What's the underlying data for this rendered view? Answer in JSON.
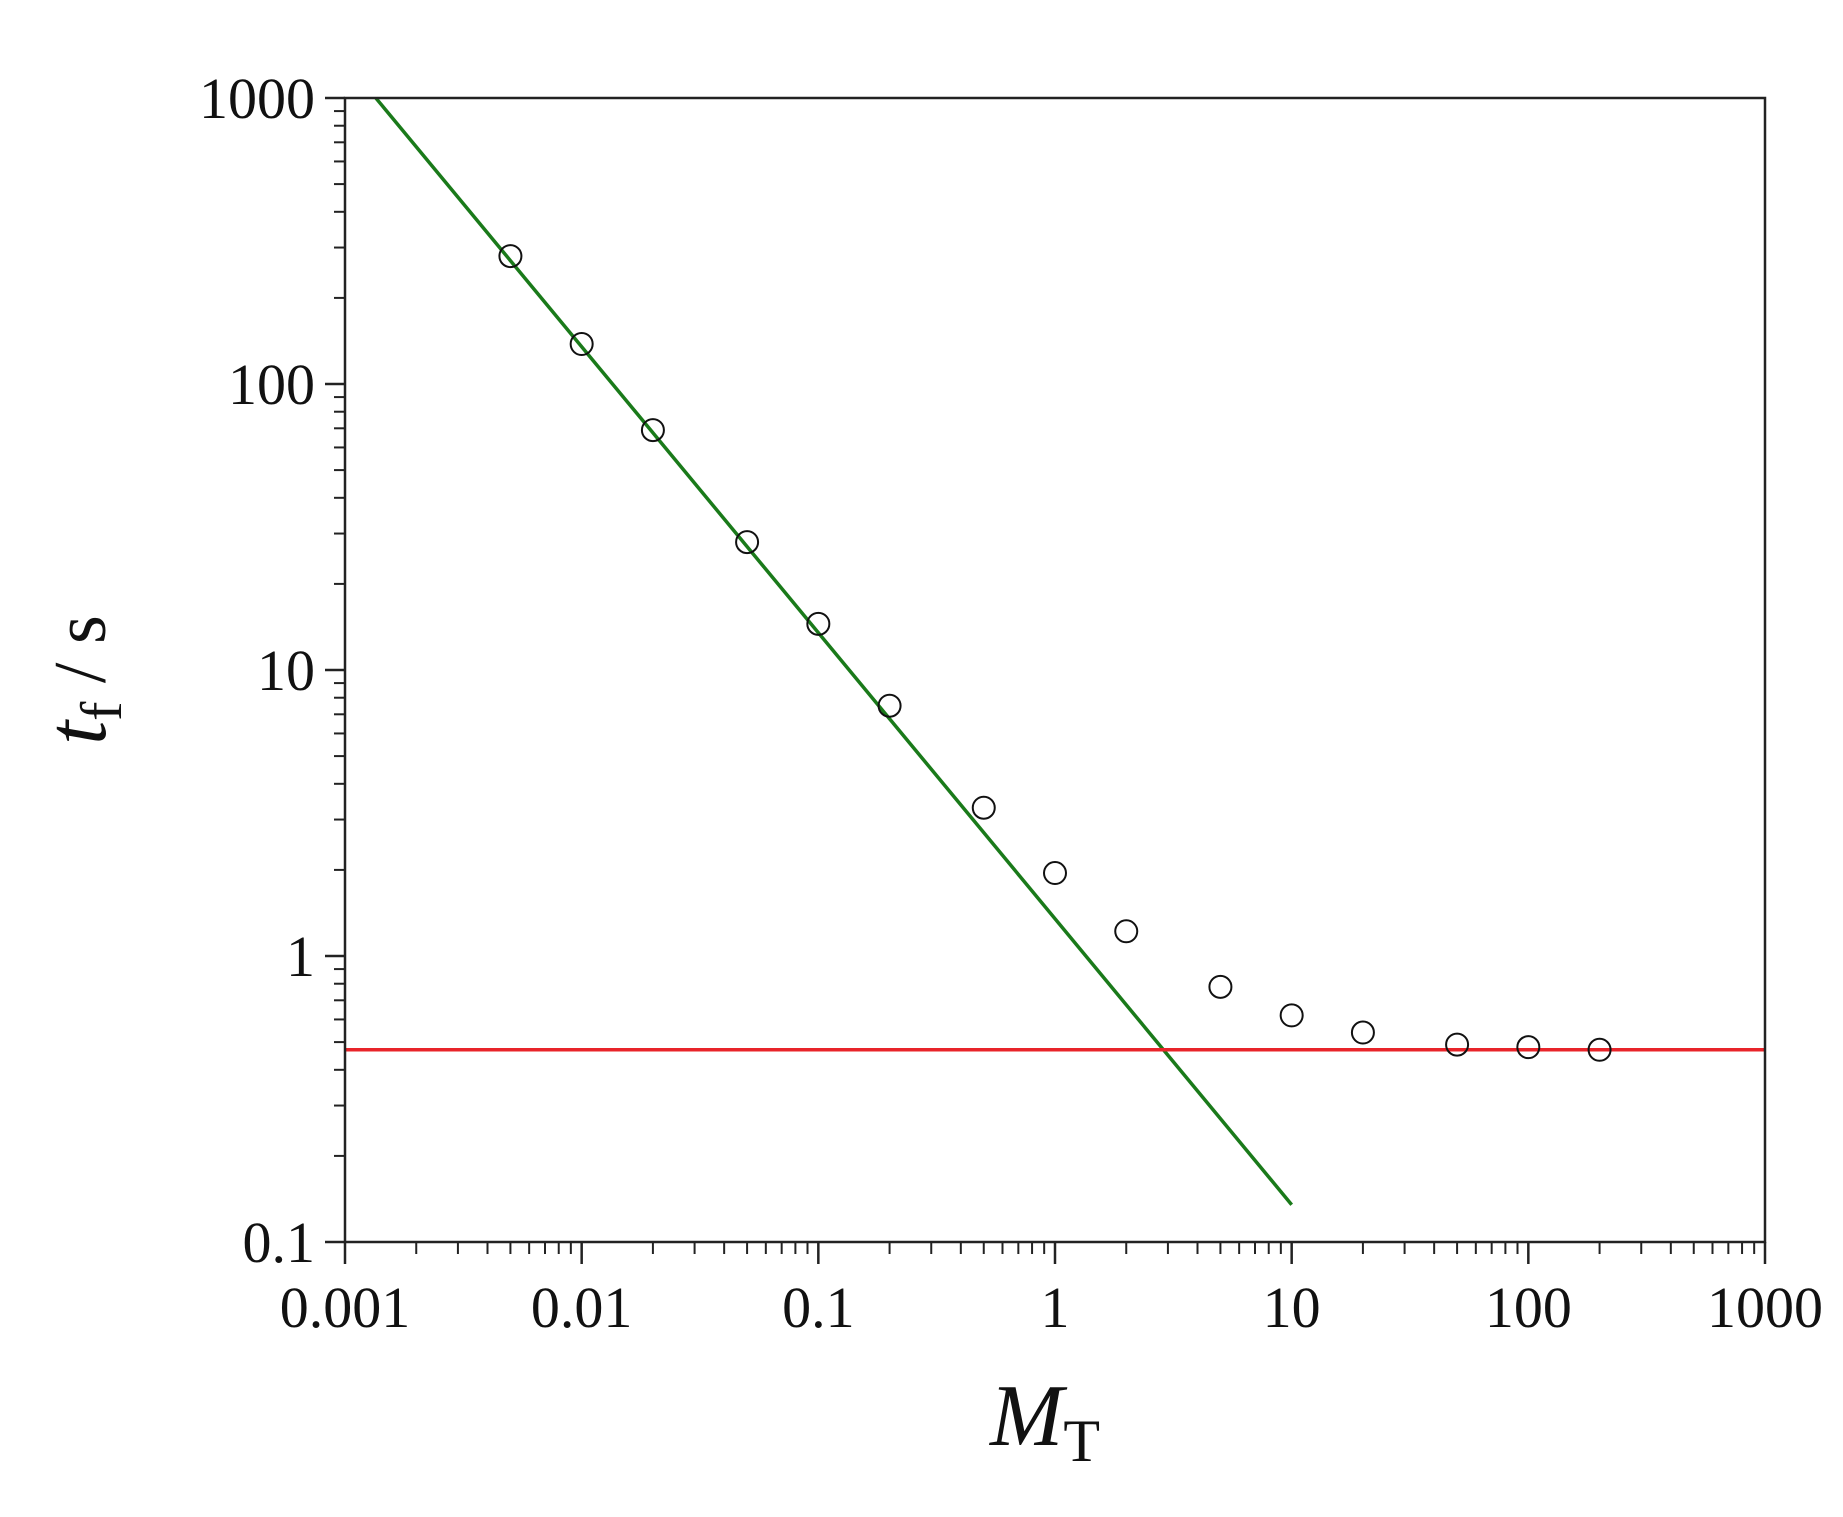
{
  "chart_data": {
    "type": "scatter",
    "x_scale": "log",
    "y_scale": "log",
    "xlim": [
      0.001,
      1000
    ],
    "ylim": [
      0.1,
      1000
    ],
    "xlabel": {
      "main": "M",
      "sub": "T"
    },
    "ylabel": {
      "main": "t",
      "sub": "f",
      "unit": " / s"
    },
    "x_tick_labels": [
      "0.001",
      "0.01",
      "0.1",
      "1",
      "10",
      "100",
      "1000"
    ],
    "y_tick_labels": [
      "0.1",
      "1",
      "10",
      "100",
      "1000"
    ],
    "grid": false,
    "series": [
      {
        "kind": "scatter",
        "marker": "open-circle",
        "color": "#111111",
        "points": [
          {
            "x": 0.005,
            "y": 280
          },
          {
            "x": 0.01,
            "y": 138
          },
          {
            "x": 0.02,
            "y": 69
          },
          {
            "x": 0.05,
            "y": 28
          },
          {
            "x": 0.1,
            "y": 14.5
          },
          {
            "x": 0.2,
            "y": 7.5
          },
          {
            "x": 0.5,
            "y": 3.3
          },
          {
            "x": 1,
            "y": 1.95
          },
          {
            "x": 2,
            "y": 1.22
          },
          {
            "x": 5,
            "y": 0.78
          },
          {
            "x": 10,
            "y": 0.62
          },
          {
            "x": 20,
            "y": 0.54
          },
          {
            "x": 50,
            "y": 0.49
          },
          {
            "x": 100,
            "y": 0.48
          },
          {
            "x": 200,
            "y": 0.47
          }
        ]
      },
      {
        "kind": "line",
        "color": "#1a7a1a",
        "points": [
          {
            "x": 0.00135,
            "y": 1000
          },
          {
            "x": 10,
            "y": 0.135
          }
        ]
      },
      {
        "kind": "line",
        "color": "#e8242a",
        "points": [
          {
            "x": 0.001,
            "y": 0.47
          },
          {
            "x": 1000,
            "y": 0.47
          }
        ]
      }
    ]
  }
}
